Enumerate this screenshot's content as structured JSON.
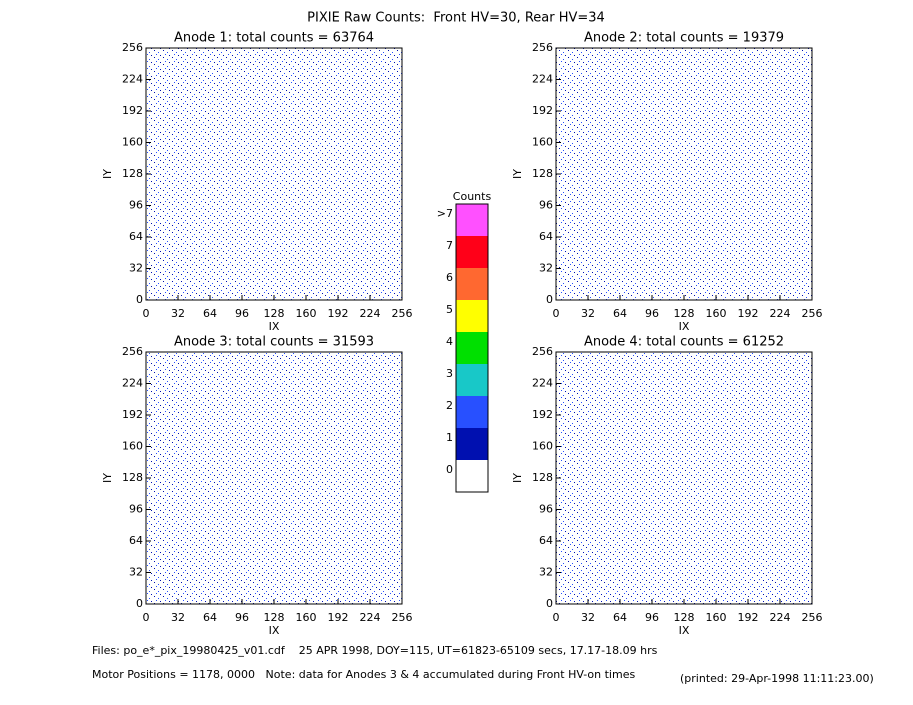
{
  "title": "PIXIE Raw Counts:  Front HV=30, Rear HV=34",
  "chart_data": [
    {
      "type": "heatmap",
      "title": "Anode 1: total counts = 63764",
      "xlabel": "IX",
      "ylabel": "IY",
      "xlim": [
        0,
        256
      ],
      "ylim": [
        0,
        256
      ],
      "xticks": [
        0,
        32,
        64,
        96,
        128,
        160,
        192,
        224,
        256
      ],
      "yticks": [
        0,
        32,
        64,
        96,
        128,
        160,
        192,
        224,
        256
      ]
    },
    {
      "type": "heatmap",
      "title": "Anode 2: total counts = 19379",
      "xlabel": "IX",
      "ylabel": "IY",
      "xlim": [
        0,
        256
      ],
      "ylim": [
        0,
        256
      ],
      "xticks": [
        0,
        32,
        64,
        96,
        128,
        160,
        192,
        224,
        256
      ],
      "yticks": [
        0,
        32,
        64,
        96,
        128,
        160,
        192,
        224,
        256
      ]
    },
    {
      "type": "heatmap",
      "title": "Anode 3: total counts = 31593",
      "xlabel": "IX",
      "ylabel": "IY",
      "xlim": [
        0,
        256
      ],
      "ylim": [
        0,
        256
      ],
      "xticks": [
        0,
        32,
        64,
        96,
        128,
        160,
        192,
        224,
        256
      ],
      "yticks": [
        0,
        32,
        64,
        96,
        128,
        160,
        192,
        224,
        256
      ]
    },
    {
      "type": "heatmap",
      "title": "Anode 4: total counts = 61252",
      "xlabel": "IX",
      "ylabel": "IY",
      "xlim": [
        0,
        256
      ],
      "ylim": [
        0,
        256
      ],
      "xticks": [
        0,
        32,
        64,
        96,
        128,
        160,
        192,
        224,
        256
      ],
      "yticks": [
        0,
        32,
        64,
        96,
        128,
        160,
        192,
        224,
        256
      ]
    }
  ],
  "colorbar": {
    "title": "Counts",
    "labels": [
      "0",
      "1",
      "2",
      "3",
      "4",
      "5",
      "6",
      "7",
      ">7"
    ],
    "colors": [
      "#ffffff",
      "#0010b0",
      "#2850ff",
      "#18c8c8",
      "#00e000",
      "#ffff00",
      "#ff6830",
      "#ff0018",
      "#ff50ff"
    ]
  },
  "footer": {
    "files": "Files: po_e*_pix_19980425_v01.cdf    25 APR 1998, DOY=115, UT=61823-65109 secs, 17.17-18.09 hrs",
    "motor": "Motor Positions = 1178, 0000   Note: data for Anodes 3 & 4 accumulated during Front HV-on times",
    "printed": "(printed: 29-Apr-1998 11:11:23.00)"
  }
}
